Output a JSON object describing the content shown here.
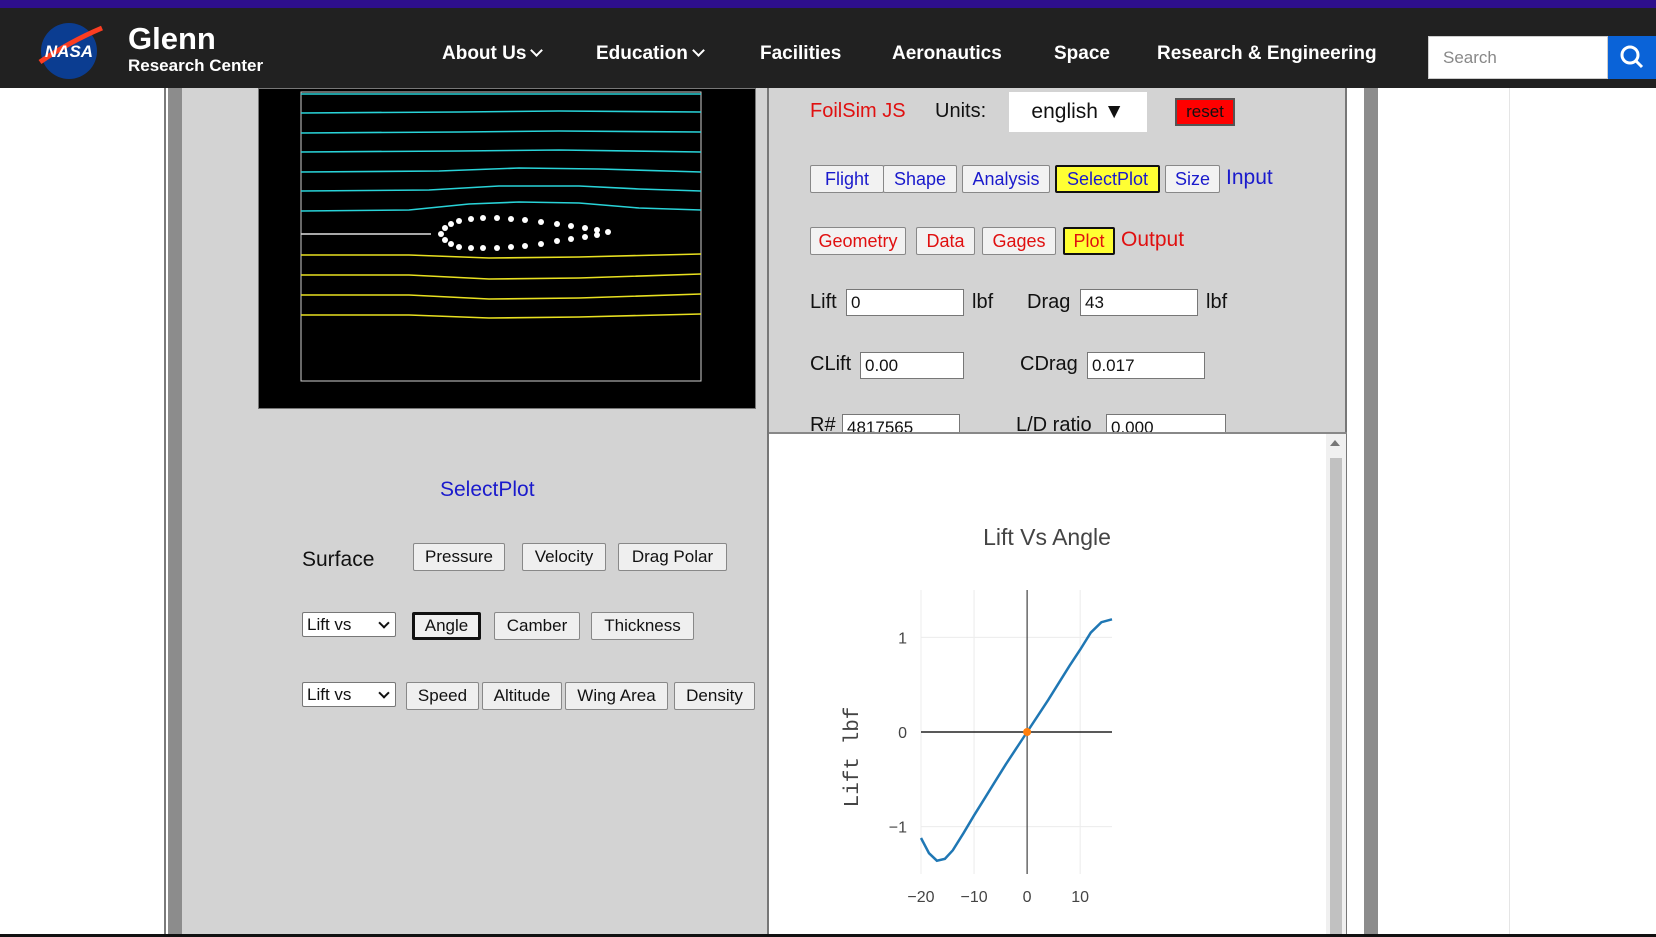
{
  "header": {
    "org_logo": "NASA",
    "center_name": "Glenn",
    "center_sub": "Research Center",
    "nav": [
      {
        "label": "About Us",
        "has_menu": true
      },
      {
        "label": "Education",
        "has_menu": true
      },
      {
        "label": "Facilities",
        "has_menu": false
      },
      {
        "label": "Aeronautics",
        "has_menu": false
      },
      {
        "label": "Space",
        "has_menu": false
      },
      {
        "label": "Research & Engineering",
        "has_menu": false
      }
    ],
    "search_placeholder": "Search",
    "search_icon": "magnifier-icon"
  },
  "simulator": {
    "app_name": "FoilSim JS",
    "units_label": "Units:",
    "units_value": "english ▼",
    "reset_label": "reset",
    "input_tabs": [
      "Flight",
      "Shape",
      "Analysis",
      "SelectPlot",
      "Size"
    ],
    "input_tabs_active": "SelectPlot",
    "input_label": "Input",
    "output_tabs": [
      "Geometry",
      "Data",
      "Gages",
      "Plot"
    ],
    "output_tabs_active": "Plot",
    "output_label": "Output",
    "lift_label": "Lift",
    "lift_value": "0",
    "lift_unit": "lbf",
    "drag_label": "Drag",
    "drag_value": "43",
    "drag_unit": "lbf",
    "clift_label": "CLift",
    "clift_value": "0.00",
    "cdrag_label": "CDrag",
    "cdrag_value": "0.017",
    "reynolds_label": "R#",
    "reynolds_value": "4817565",
    "ld_label": "L/D ratio",
    "ld_value": "0.000"
  },
  "selectplot": {
    "title": "SelectPlot",
    "surface_label": "Surface",
    "surface_buttons": [
      "Pressure",
      "Velocity",
      "Drag Polar"
    ],
    "row2_select": "Lift vs",
    "row2_buttons": [
      "Angle",
      "Camber",
      "Thickness"
    ],
    "row2_active": "Angle",
    "row3_select": "Lift vs",
    "row3_buttons": [
      "Speed",
      "Altitude",
      "Wing Area",
      "Density"
    ]
  },
  "colors": {
    "nav_bg": "#212121",
    "accent_stripe": "#2e0f8c",
    "search_button": "#0a63d8",
    "streamline_upper": "#29d3d8",
    "streamline_lower": "#e8e020",
    "plot_line": "#1f77b4",
    "plot_marker": "#ff7f0e"
  },
  "chart_data": {
    "type": "line",
    "title": "Lift Vs Angle",
    "xlabel": "",
    "ylabel": "Lift lbf",
    "xlim": [
      -20,
      16
    ],
    "ylim": [
      -1.5,
      1.5
    ],
    "x_ticks": [
      "−20",
      "−10",
      "0",
      "10"
    ],
    "y_ticks": [
      "1",
      "0",
      "−1"
    ],
    "series": [
      {
        "x": [
          -20,
          -18.5,
          -17,
          -15.5,
          -14,
          -12,
          -10,
          -8,
          -6,
          -4,
          -2,
          0,
          2,
          4,
          6,
          8,
          10,
          12,
          14,
          16
        ],
        "y": [
          -1.12,
          -1.28,
          -1.36,
          -1.34,
          -1.25,
          -1.07,
          -0.88,
          -0.7,
          -0.52,
          -0.34,
          -0.17,
          0,
          0.17,
          0.34,
          0.52,
          0.7,
          0.87,
          1.05,
          1.16,
          1.19
        ]
      }
    ],
    "markers": [
      {
        "x": 0,
        "y": 0
      }
    ],
    "grid": true
  }
}
